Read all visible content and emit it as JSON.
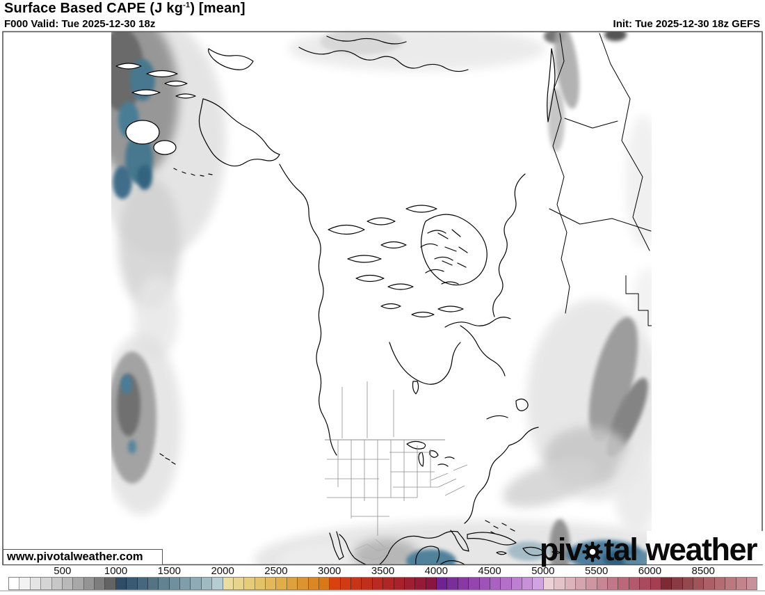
{
  "header": {
    "title_prefix": "Surface Based CAPE (J kg",
    "title_sup": "-1",
    "title_suffix": ") [mean]",
    "valid_line": "F000 Valid: Tue 2025-12-30 18z",
    "init_line": "Init: Tue 2025-12-30 18z GEFS"
  },
  "map": {
    "watermark": "www.pivotalweather.com",
    "logo": {
      "part1": "piv",
      "part2": "tal",
      "part3": "weather"
    }
  },
  "colorbar": {
    "tick_labels": [
      "500",
      "1000",
      "1500",
      "2000",
      "2500",
      "3000",
      "3500",
      "4000",
      "4500",
      "5000",
      "5500",
      "6000",
      "8500"
    ],
    "cells": [
      "#ffffff",
      "#f2f2f2",
      "#e4e4e4",
      "#d5d5d5",
      "#c7c7c7",
      "#b9b9b9",
      "#a8a8a8",
      "#949494",
      "#7d7d7d",
      "#636363",
      "#2f4d66",
      "#3a5a74",
      "#47677e",
      "#547486",
      "#628292",
      "#70909e",
      "#7f9daa",
      "#8fabb6",
      "#a0bac2",
      "#b5cdd2",
      "#e9dc9e",
      "#e8d48c",
      "#e6cb7b",
      "#e4c26a",
      "#e2b85a",
      "#e0ad4b",
      "#dea13d",
      "#dc9430",
      "#da8724",
      "#d87818",
      "#d9420e",
      "#d03a14",
      "#c83418",
      "#c02e1c",
      "#b82a22",
      "#b02626",
      "#a8222c",
      "#a01e32",
      "#961a38",
      "#8a153e",
      "#6e2390",
      "#7b2d9a",
      "#8839a4",
      "#9446ae",
      "#9f53b6",
      "#aa61c0",
      "#b470c8",
      "#bd80d0",
      "#c791d8",
      "#d1a3e0",
      "#ecd2d6",
      "#e4c2c8",
      "#ddb3bb",
      "#d6a4ae",
      "#cf95a1",
      "#c88694",
      "#c17787",
      "#ba687a",
      "#b3596d",
      "#ab4a5e",
      "#a43e50",
      "#7e2a34",
      "#8a3a42",
      "#95474e",
      "#a0545a",
      "#aa6066",
      "#b36c72",
      "#bb787e",
      "#c2848a",
      "#c9909a"
    ]
  }
}
